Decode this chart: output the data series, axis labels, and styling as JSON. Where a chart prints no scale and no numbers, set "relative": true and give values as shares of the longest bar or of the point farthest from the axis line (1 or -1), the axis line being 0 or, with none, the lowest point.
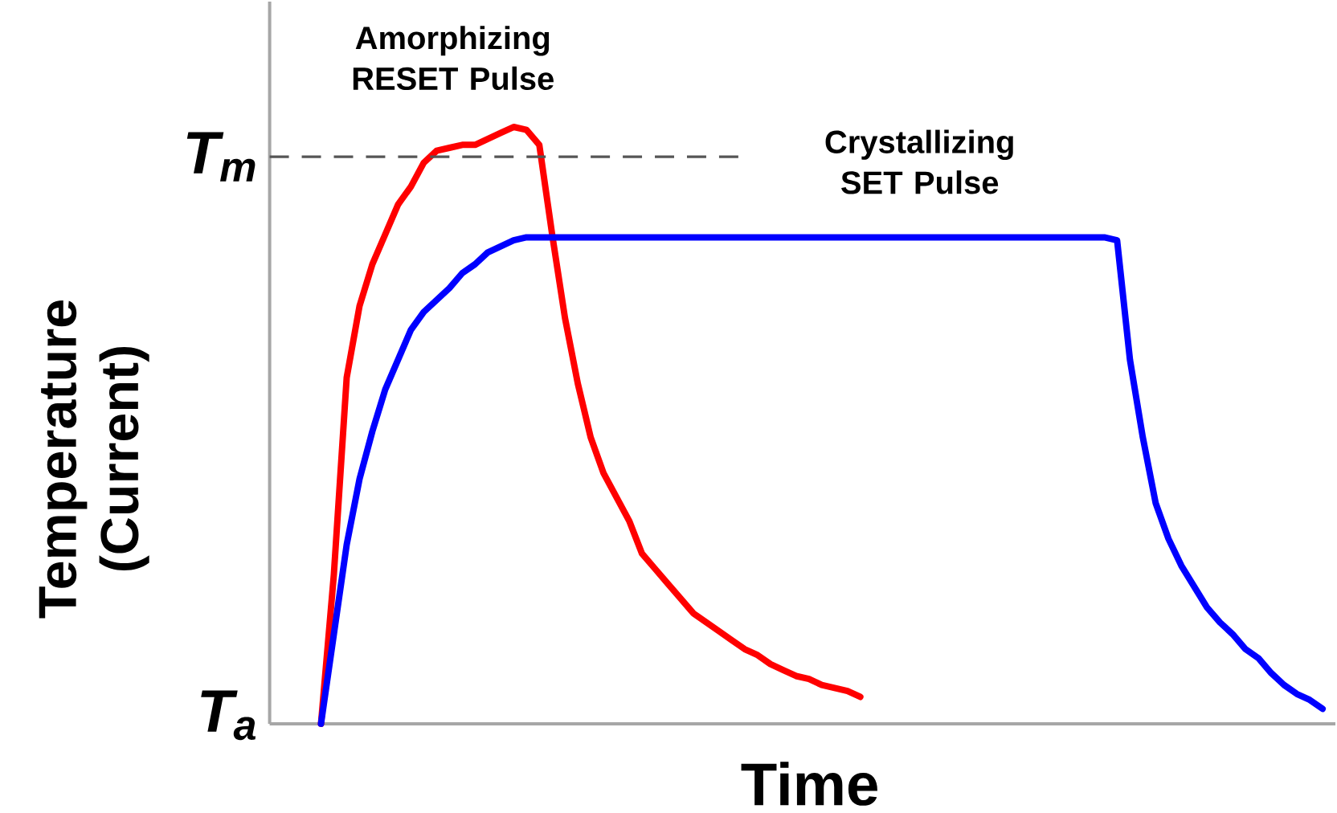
{
  "chart_data": {
    "type": "line",
    "relative": true,
    "xlabel": "Time",
    "ylabel": "Temperature (Current)",
    "categories": [
      null,
      null,
      null,
      null,
      null,
      null,
      null,
      null,
      null,
      null,
      null,
      null,
      null,
      null,
      null,
      null,
      null,
      null,
      null,
      null,
      null,
      null,
      null,
      null,
      null,
      null,
      null,
      null,
      null,
      null,
      null,
      null,
      null,
      null,
      null,
      null,
      null,
      null,
      null,
      null,
      null,
      null,
      null,
      null,
      null,
      null,
      null,
      null,
      null,
      null,
      null,
      null,
      null,
      null,
      null,
      null,
      null,
      null,
      null,
      null,
      null,
      null,
      null,
      null,
      null,
      null,
      null,
      null,
      null,
      null,
      null,
      null,
      null,
      null,
      null,
      null,
      null,
      null,
      null
    ],
    "series": [
      {
        "name": "Amorphizing RESET Pulse",
        "color": "#ff0000",
        "values": [
          0,
          0.25,
          0.58,
          0.7,
          0.77,
          0.82,
          0.87,
          0.9,
          0.94,
          0.96,
          0.965,
          0.97,
          0.97,
          0.98,
          0.99,
          1.0,
          0.995,
          0.97,
          0.82,
          0.68,
          0.57,
          0.48,
          0.42,
          0.38,
          0.34,
          0.285,
          0.26,
          0.235,
          0.21,
          0.185,
          0.17,
          0.155,
          0.14,
          0.125,
          0.115,
          0.1,
          0.09,
          0.08,
          0.075,
          0.065,
          0.06,
          0.055,
          0.045,
          null,
          null,
          null,
          null,
          null,
          null,
          null,
          null,
          null,
          null,
          null,
          null,
          null,
          null,
          null,
          null,
          null,
          null,
          null,
          null,
          null,
          null,
          null,
          null,
          null,
          null,
          null,
          null,
          null,
          null,
          null,
          null,
          null,
          null,
          null,
          null
        ]
      },
      {
        "name": "Crystallizing SET Pulse",
        "color": "#0000ff",
        "values": [
          0,
          0.15,
          0.3,
          0.41,
          0.49,
          0.56,
          0.61,
          0.66,
          0.69,
          0.71,
          0.73,
          0.755,
          0.77,
          0.79,
          0.8,
          0.81,
          0.815,
          0.815,
          0.815,
          0.815,
          0.815,
          0.815,
          0.815,
          0.815,
          0.815,
          0.815,
          0.815,
          0.815,
          0.815,
          0.815,
          0.815,
          0.815,
          0.815,
          0.815,
          0.815,
          0.815,
          0.815,
          0.815,
          0.815,
          0.815,
          0.815,
          0.815,
          0.815,
          0.815,
          0.815,
          0.815,
          0.815,
          0.815,
          0.815,
          0.815,
          0.815,
          0.815,
          0.815,
          0.815,
          0.815,
          0.815,
          0.815,
          0.815,
          0.815,
          0.815,
          0.815,
          0.815,
          0.81,
          0.61,
          0.48,
          0.37,
          0.31,
          0.265,
          0.23,
          0.195,
          0.17,
          0.15,
          0.125,
          0.11,
          0.085,
          0.065,
          0.05,
          0.04,
          0.025
        ]
      }
    ],
    "ref_lines": [
      {
        "axis": "y",
        "value": 0.95,
        "label": "T$_{m}$",
        "color": "#555555",
        "line_style": "dashed"
      }
    ],
    "annotations": [
      "T$_{a}$"
    ]
  }
}
